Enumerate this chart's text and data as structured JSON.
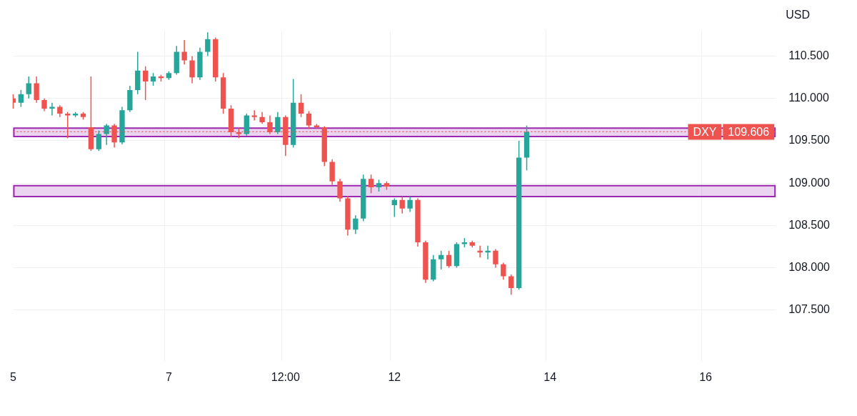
{
  "chart_data": {
    "type": "candlestick",
    "ylabel": "USD",
    "categories": [
      "5",
      null,
      null,
      null,
      null,
      null,
      null,
      null,
      null,
      null,
      null,
      null,
      null,
      null,
      null,
      null,
      null,
      null,
      null,
      null,
      "7",
      null,
      null,
      null,
      null,
      null,
      null,
      null,
      null,
      null,
      null,
      null,
      null,
      null,
      null,
      "12:00",
      null,
      null,
      null,
      null,
      null,
      null,
      null,
      null,
      null,
      null,
      null,
      null,
      null,
      "12",
      null,
      null,
      null,
      null,
      null,
      null,
      null,
      null,
      null,
      null,
      null,
      null,
      null,
      null,
      null,
      null,
      null,
      null,
      null,
      "14",
      null,
      null,
      null,
      null,
      null,
      null,
      null,
      null,
      null,
      null,
      null,
      null,
      null,
      null,
      null,
      null,
      null,
      null,
      null,
      "16",
      null,
      null,
      null,
      null,
      null,
      null,
      null,
      null,
      null
    ],
    "series": [
      {
        "name": "DXY",
        "ohlc": [
          [
            110.0,
            110.05,
            109.88,
            109.95
          ],
          [
            109.95,
            110.1,
            109.9,
            110.05
          ],
          [
            110.05,
            110.26,
            110.0,
            110.18
          ],
          [
            110.18,
            110.26,
            109.95,
            109.98
          ],
          [
            109.98,
            110.0,
            109.85,
            109.88
          ],
          [
            109.88,
            109.95,
            109.8,
            109.9
          ],
          [
            109.9,
            109.92,
            109.78,
            109.82
          ],
          [
            109.82,
            109.84,
            109.53,
            109.8
          ],
          [
            109.8,
            109.84,
            109.78,
            109.82
          ],
          [
            109.82,
            109.84,
            109.75,
            109.78
          ],
          [
            109.66,
            110.26,
            109.38,
            109.4
          ],
          [
            109.4,
            109.62,
            109.38,
            109.58
          ],
          [
            109.58,
            109.7,
            109.45,
            109.68
          ],
          [
            109.68,
            109.7,
            109.42,
            109.48
          ],
          [
            109.48,
            109.9,
            109.46,
            109.86
          ],
          [
            109.86,
            110.15,
            109.84,
            110.1
          ],
          [
            110.1,
            110.55,
            110.05,
            110.33
          ],
          [
            110.33,
            110.38,
            109.98,
            110.2
          ],
          [
            110.2,
            110.3,
            110.15,
            110.26
          ],
          [
            110.26,
            110.28,
            110.2,
            110.24
          ],
          [
            110.24,
            110.32,
            110.22,
            110.3
          ],
          [
            110.3,
            110.62,
            110.28,
            110.55
          ],
          [
            110.55,
            110.69,
            110.4,
            110.45
          ],
          [
            110.45,
            110.5,
            110.18,
            110.25
          ],
          [
            110.25,
            110.6,
            110.22,
            110.55
          ],
          [
            110.55,
            110.78,
            110.5,
            110.7
          ],
          [
            110.7,
            110.72,
            110.2,
            110.25
          ],
          [
            110.25,
            110.3,
            109.82,
            109.88
          ],
          [
            109.88,
            109.92,
            109.54,
            109.6
          ],
          [
            109.6,
            109.65,
            109.53,
            109.58
          ],
          [
            109.58,
            109.82,
            109.56,
            109.8
          ],
          [
            109.8,
            109.86,
            109.74,
            109.78
          ],
          [
            109.78,
            109.84,
            109.7,
            109.72
          ],
          [
            109.72,
            109.8,
            109.58,
            109.6
          ],
          [
            109.6,
            109.84,
            109.58,
            109.78
          ],
          [
            109.78,
            109.8,
            109.32,
            109.45
          ],
          [
            109.45,
            110.23,
            109.42,
            109.95
          ],
          [
            109.95,
            110.05,
            109.78,
            109.82
          ],
          [
            109.82,
            109.85,
            109.64,
            109.68
          ],
          [
            109.68,
            109.7,
            109.64,
            109.66
          ],
          [
            109.66,
            109.67,
            109.2,
            109.25
          ],
          [
            109.25,
            109.28,
            108.98,
            109.02
          ],
          [
            109.02,
            109.05,
            108.78,
            108.82
          ],
          [
            108.82,
            108.85,
            108.38,
            108.45
          ],
          [
            108.45,
            108.62,
            108.4,
            108.58
          ],
          [
            108.58,
            109.1,
            108.55,
            109.05
          ],
          [
            109.05,
            109.1,
            108.88,
            108.95
          ],
          [
            108.95,
            109.04,
            108.9,
            109.0
          ],
          [
            109.0,
            109.02,
            108.92,
            108.96
          ],
          [
            108.74,
            108.82,
            108.6,
            108.8
          ],
          [
            108.8,
            108.84,
            108.64,
            108.7
          ],
          [
            108.7,
            108.84,
            108.66,
            108.8
          ],
          [
            108.8,
            108.82,
            108.25,
            108.3
          ],
          [
            108.3,
            108.32,
            107.82,
            107.86
          ],
          [
            107.86,
            108.15,
            107.84,
            108.1
          ],
          [
            108.1,
            108.2,
            107.98,
            108.15
          ],
          [
            108.15,
            108.2,
            108.0,
            108.02
          ],
          [
            108.02,
            108.3,
            108.0,
            108.28
          ],
          [
            108.28,
            108.35,
            108.24,
            108.3
          ],
          [
            108.3,
            108.32,
            108.24,
            108.26
          ],
          [
            108.2,
            108.26,
            108.12,
            108.18
          ],
          [
            108.18,
            108.26,
            108.1,
            108.2
          ],
          [
            108.2,
            108.22,
            108.0,
            108.04
          ],
          [
            108.04,
            108.06,
            107.86,
            107.9
          ],
          [
            107.9,
            107.92,
            107.68,
            107.76
          ],
          [
            107.76,
            109.5,
            107.74,
            109.3
          ],
          [
            109.3,
            109.68,
            109.15,
            109.606
          ],
          null,
          null,
          null,
          null,
          null,
          null,
          null,
          null,
          null,
          null,
          null,
          null,
          null,
          null,
          null,
          null,
          null,
          null,
          null,
          null,
          null,
          null,
          null,
          null,
          null,
          null,
          null,
          null,
          null,
          null,
          null,
          null
        ],
        "colors": [
          "#ef5350",
          "#26a69a",
          "#26a69a",
          "#ef5350",
          "#ef5350",
          "#26a69a",
          "#ef5350",
          "#ef5350",
          "#26a69a",
          "#ef5350",
          "#ef5350",
          "#26a69a",
          "#26a69a",
          "#ef5350",
          "#26a69a",
          "#26a69a",
          "#26a69a",
          "#ef5350",
          "#26a69a",
          "#ef5350",
          "#26a69a",
          "#26a69a",
          "#ef5350",
          "#ef5350",
          "#26a69a",
          "#26a69a",
          "#ef5350",
          "#ef5350",
          "#ef5350",
          "#ef5350",
          "#26a69a",
          "#ef5350",
          "#ef5350",
          "#ef5350",
          "#26a69a",
          "#ef5350",
          "#26a69a",
          "#ef5350",
          "#ef5350",
          "#ef5350",
          "#ef5350",
          "#ef5350",
          "#ef5350",
          "#ef5350",
          "#26a69a",
          "#26a69a",
          "#ef5350",
          "#26a69a",
          "#ef5350",
          "#26a69a",
          "#ef5350",
          "#26a69a",
          "#ef5350",
          "#ef5350",
          "#26a69a",
          "#26a69a",
          "#ef5350",
          "#26a69a",
          "#26a69a",
          "#ef5350",
          "#ef5350",
          "#26a69a",
          "#ef5350",
          "#ef5350",
          "#ef5350",
          "#26a69a",
          "#26a69a",
          null,
          null,
          null,
          null,
          null,
          null,
          null,
          null,
          null,
          null,
          null,
          null,
          null,
          null,
          null,
          null,
          null,
          null,
          null,
          null,
          null,
          null,
          null,
          null,
          null,
          null,
          null,
          null,
          null,
          null,
          null,
          null
        ]
      }
    ],
    "ylim": [
      106.9,
      110.8
    ],
    "yticks": [
      {
        "value": 107.5,
        "label": "107.500"
      },
      {
        "value": 108,
        "label": "108.000"
      },
      {
        "value": 108.5,
        "label": "108.500"
      },
      {
        "value": 109,
        "label": "109.000"
      },
      {
        "value": 109.5,
        "label": "109.500"
      },
      {
        "value": 110,
        "label": "110.000"
      },
      {
        "value": 110.5,
        "label": "110.500"
      }
    ],
    "ref_lines": [
      {
        "axis": "y",
        "value": 109.606,
        "label": "109.606",
        "color": "#ef5350",
        "line_style": "dotted"
      }
    ],
    "bands": [
      {
        "axis": "y",
        "from": 109.55,
        "to": 109.65,
        "color": "#9c27b0"
      },
      {
        "axis": "y",
        "from": 108.84,
        "to": 108.97,
        "color": "#9c27b0"
      }
    ],
    "grid": true,
    "legend": false
  }
}
